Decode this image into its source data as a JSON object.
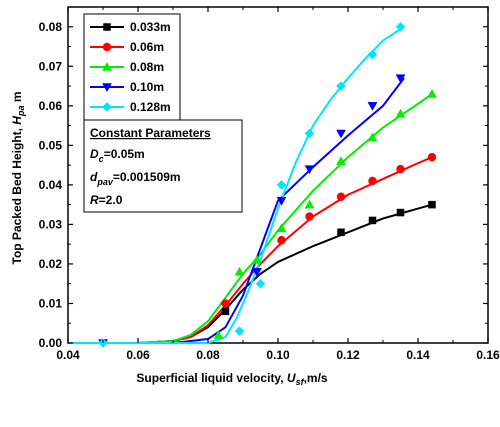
{
  "chart_data": {
    "type": "line",
    "xlabel": {
      "main": "Superficial liquid velocity, ",
      "italic": "U",
      "sub": "sf",
      "rest": ",m/s"
    },
    "ylabel": {
      "main": "Top Packed Bed Height, ",
      "italic": "H",
      "sub": "pa",
      "rest": " m"
    },
    "xlim": [
      0.04,
      0.16
    ],
    "ylim": [
      0.0,
      0.085
    ],
    "x_ticks": [
      0.04,
      0.06,
      0.08,
      0.1,
      0.12,
      0.14,
      0.16
    ],
    "x_tick_labels": [
      "0.04",
      "0.06",
      "0.08",
      "0.10",
      "0.12",
      "0.14",
      "0.16"
    ],
    "y_ticks": [
      0.0,
      0.01,
      0.02,
      0.03,
      0.04,
      0.05,
      0.06,
      0.07,
      0.08
    ],
    "y_tick_labels": [
      "0.00",
      "0.01",
      "0.02",
      "0.03",
      "0.04",
      "0.05",
      "0.06",
      "0.07",
      "0.08"
    ],
    "legend_position": "top-left",
    "series": [
      {
        "name": "0.033m",
        "color": "#000000",
        "marker": "square",
        "curve_x": [
          0.04,
          0.05,
          0.06,
          0.07,
          0.075,
          0.08,
          0.085,
          0.09,
          0.095,
          0.1,
          0.11,
          0.12,
          0.13,
          0.14,
          0.144
        ],
        "curve_y": [
          0.0,
          0.0,
          0.0,
          0.0005,
          0.0015,
          0.004,
          0.0085,
          0.0135,
          0.0175,
          0.0205,
          0.0245,
          0.028,
          0.0315,
          0.034,
          0.035
        ],
        "points": [
          [
            0.085,
            0.008
          ],
          [
            0.118,
            0.028
          ],
          [
            0.127,
            0.031
          ],
          [
            0.135,
            0.033
          ],
          [
            0.144,
            0.035
          ]
        ]
      },
      {
        "name": "0.06m",
        "color": "#ff0000",
        "marker": "circle",
        "curve_x": [
          0.04,
          0.05,
          0.06,
          0.07,
          0.075,
          0.08,
          0.085,
          0.09,
          0.095,
          0.1,
          0.11,
          0.12,
          0.13,
          0.14,
          0.144
        ],
        "curve_y": [
          0.0,
          0.0,
          0.0,
          0.0005,
          0.0015,
          0.0045,
          0.0095,
          0.015,
          0.02,
          0.0245,
          0.032,
          0.0375,
          0.0415,
          0.0455,
          0.047
        ],
        "points": [
          [
            0.085,
            0.01
          ],
          [
            0.101,
            0.026
          ],
          [
            0.109,
            0.032
          ],
          [
            0.118,
            0.037
          ],
          [
            0.127,
            0.041
          ],
          [
            0.135,
            0.044
          ],
          [
            0.144,
            0.047
          ]
        ]
      },
      {
        "name": "0.08m",
        "color": "#00ee00",
        "marker": "triangle-up",
        "curve_x": [
          0.04,
          0.05,
          0.06,
          0.07,
          0.075,
          0.08,
          0.085,
          0.09,
          0.095,
          0.1,
          0.11,
          0.12,
          0.13,
          0.14,
          0.144
        ],
        "curve_y": [
          0.0,
          0.0,
          0.0,
          0.0005,
          0.002,
          0.0055,
          0.0115,
          0.0175,
          0.0225,
          0.0285,
          0.0385,
          0.047,
          0.0545,
          0.0605,
          0.063
        ],
        "points": [
          [
            0.083,
            0.002
          ],
          [
            0.089,
            0.018
          ],
          [
            0.094,
            0.021
          ],
          [
            0.101,
            0.029
          ],
          [
            0.109,
            0.035
          ],
          [
            0.118,
            0.046
          ],
          [
            0.127,
            0.052
          ],
          [
            0.135,
            0.058
          ],
          [
            0.144,
            0.063
          ]
        ]
      },
      {
        "name": "0.10m",
        "color": "#0000ff",
        "marker": "triangle-down",
        "curve_x": [
          0.04,
          0.05,
          0.06,
          0.07,
          0.08,
          0.085,
          0.09,
          0.095,
          0.1,
          0.11,
          0.12,
          0.13,
          0.136
        ],
        "curve_y": [
          0.0,
          0.0,
          0.0,
          0.0,
          0.001,
          0.004,
          0.012,
          0.024,
          0.036,
          0.0445,
          0.0525,
          0.06,
          0.067
        ],
        "points": [
          [
            0.05,
            0.0
          ],
          [
            0.094,
            0.018
          ],
          [
            0.101,
            0.036
          ],
          [
            0.109,
            0.044
          ],
          [
            0.118,
            0.053
          ],
          [
            0.127,
            0.06
          ],
          [
            0.135,
            0.067
          ]
        ]
      },
      {
        "name": "0.128m",
        "color": "#00e5ff",
        "marker": "diamond",
        "curve_x": [
          0.04,
          0.05,
          0.06,
          0.07,
          0.08,
          0.085,
          0.088,
          0.091,
          0.095,
          0.1,
          0.105,
          0.11,
          0.115,
          0.12,
          0.125,
          0.13,
          0.136
        ],
        "curve_y": [
          0.0,
          0.0,
          0.0,
          0.0,
          0.0,
          0.0015,
          0.006,
          0.012,
          0.021,
          0.034,
          0.0455,
          0.055,
          0.0615,
          0.067,
          0.072,
          0.0765,
          0.08
        ],
        "points": [
          [
            0.05,
            0.0
          ],
          [
            0.089,
            0.003
          ],
          [
            0.095,
            0.015
          ],
          [
            0.101,
            0.04
          ],
          [
            0.109,
            0.053
          ],
          [
            0.118,
            0.065
          ],
          [
            0.127,
            0.073
          ],
          [
            0.135,
            0.08
          ]
        ]
      }
    ]
  },
  "parameters_box": {
    "title": "Constant Parameters",
    "lines": [
      {
        "italic": "D",
        "sub": "c",
        "rest": "=0.05m"
      },
      {
        "italic": "d",
        "sub": "pav",
        "rest": "=0.001509m"
      },
      {
        "italic": "R",
        "sub": "",
        "rest": "=2.0"
      }
    ]
  }
}
